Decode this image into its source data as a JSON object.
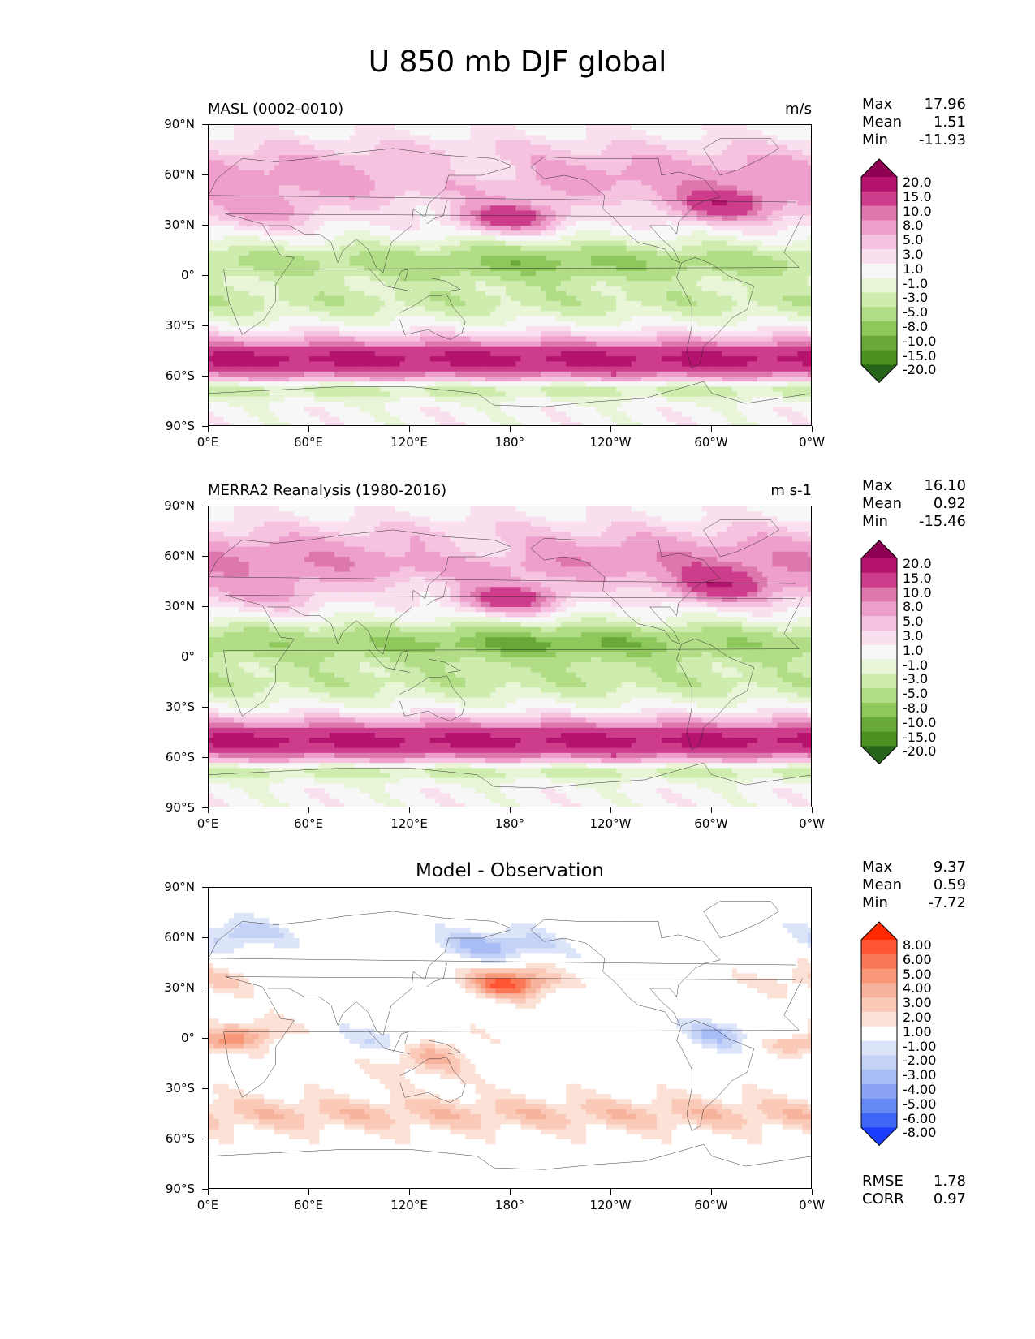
{
  "title": "U 850 mb DJF global",
  "axes": {
    "y_labels": [
      "90°N",
      "60°N",
      "30°N",
      "0°",
      "30°S",
      "60°S",
      "90°S"
    ],
    "x_labels": [
      "0°E",
      "60°E",
      "120°E",
      "180°",
      "120°W",
      "60°W",
      "0°W"
    ]
  },
  "panels": [
    {
      "left_title": "MASL (0002-0010)",
      "right_title": "m/s",
      "stats": {
        "max_label": "Max",
        "max": "17.96",
        "mean_label": "Mean",
        "mean": "1.51",
        "min_label": "Min",
        "min": "-11.93"
      },
      "colorbar": {
        "labels": [
          "20.0",
          "15.0",
          "10.0",
          "8.0",
          "5.0",
          "3.0",
          "1.0",
          "-1.0",
          "-3.0",
          "-5.0",
          "-8.0",
          "-10.0",
          "-15.0",
          "-20.0"
        ],
        "colors": [
          "#8e0152",
          "#b4136e",
          "#cd3d8c",
          "#de77ae",
          "#ee9fcc",
          "#f5c3df",
          "#fae0ef",
          "#f7f7f7",
          "#e8f5d6",
          "#cfecaf",
          "#b0dd86",
          "#8ec75c",
          "#68a93a",
          "#4d9221",
          "#276419"
        ]
      }
    },
    {
      "left_title": "MERRA2 Reanalysis (1980-2016)",
      "right_title": "m s-1",
      "stats": {
        "max_label": "Max",
        "max": "16.10",
        "mean_label": "Mean",
        "mean": "0.92",
        "min_label": "Min",
        "min": "-15.46"
      },
      "colorbar": {
        "labels": [
          "20.0",
          "15.0",
          "10.0",
          "8.0",
          "5.0",
          "3.0",
          "1.0",
          "-1.0",
          "-3.0",
          "-5.0",
          "-8.0",
          "-10.0",
          "-15.0",
          "-20.0"
        ],
        "colors": [
          "#8e0152",
          "#b4136e",
          "#cd3d8c",
          "#de77ae",
          "#ee9fcc",
          "#f5c3df",
          "#fae0ef",
          "#f7f7f7",
          "#e8f5d6",
          "#cfecaf",
          "#b0dd86",
          "#8ec75c",
          "#68a93a",
          "#4d9221",
          "#276419"
        ]
      }
    },
    {
      "center_title": "Model - Observation",
      "stats": {
        "max_label": "Max",
        "max": "9.37",
        "mean_label": "Mean",
        "mean": "0.59",
        "min_label": "Min",
        "min": "-7.72"
      },
      "colorbar": {
        "labels": [
          "8.00",
          "6.00",
          "5.00",
          "4.00",
          "3.00",
          "2.00",
          "1.00",
          "-1.00",
          "-2.00",
          "-3.00",
          "-4.00",
          "-5.00",
          "-6.00",
          "-8.00"
        ],
        "colors": [
          "#ff2a00",
          "#ff5533",
          "#fa7755",
          "#f89878",
          "#f8b39c",
          "#fac9b8",
          "#fce1d6",
          "#ffffff",
          "#dce4fa",
          "#c4d2f8",
          "#a8bcf5",
          "#8aa4f3",
          "#6688f2",
          "#3d66f5",
          "#1a3dff"
        ]
      },
      "extra": {
        "rmse_label": "RMSE",
        "rmse": "1.78",
        "corr_label": "CORR",
        "corr": "0.97"
      }
    }
  ]
}
